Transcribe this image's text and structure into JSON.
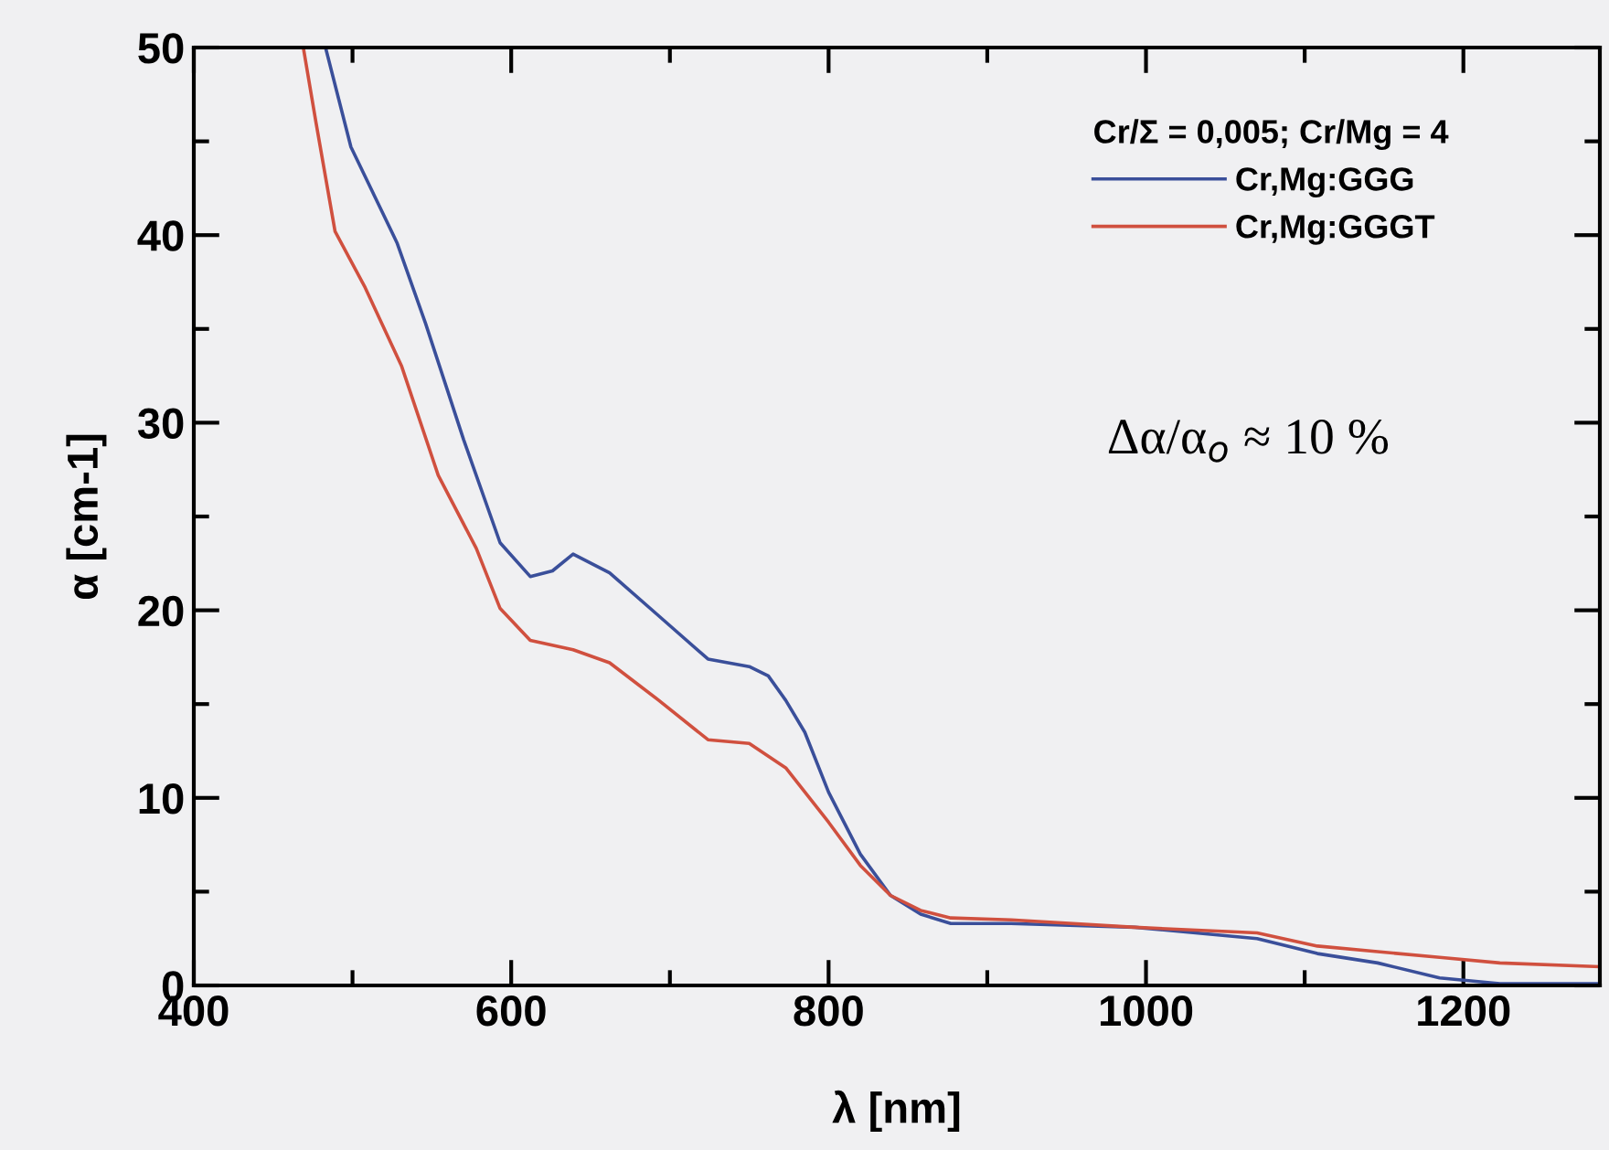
{
  "chart_data": {
    "type": "line",
    "xlabel": "λ [nm]",
    "ylabel": "α [cm-1]",
    "legend_title": "Cr/Σ = 0,005; Cr/Mg = 4",
    "legend": "top right",
    "grid": false,
    "marker": "none",
    "line_style": "solid",
    "xlim": [
      400,
      1286
    ],
    "ylim": [
      0,
      50
    ],
    "xticks": [
      400,
      {
        "value": 500,
        "label": null
      },
      600,
      {
        "value": 700,
        "label": null
      },
      800,
      {
        "value": 900,
        "label": null
      },
      1000,
      {
        "value": 1100,
        "label": null
      },
      1200
    ],
    "yticks": [
      0,
      {
        "value": 5,
        "label": null
      },
      10,
      {
        "value": 15,
        "label": null
      },
      20,
      {
        "value": 25,
        "label": null
      },
      30,
      {
        "value": 35,
        "label": null
      },
      40,
      {
        "value": 45,
        "label": null
      },
      50
    ],
    "annotations": [
      "Δα/α$_{o}$ ≈ 10 %"
    ],
    "series": [
      {
        "name": "Cr,Mg:GGG",
        "color": "#3a4f9a",
        "x": [
          483,
          499,
          528,
          546,
          570,
          593,
          612,
          626,
          639,
          662,
          693,
          724,
          750,
          762,
          773,
          785,
          800,
          820,
          839,
          858,
          877,
          915,
          993,
          1070,
          1108,
          1146,
          1185,
          1223,
          1285
        ],
        "values": [
          50,
          44.7,
          39.6,
          35.3,
          29.1,
          23.6,
          21.8,
          22.1,
          23.0,
          22.0,
          19.7,
          17.4,
          17.0,
          16.5,
          15.2,
          13.5,
          10.3,
          7.0,
          4.8,
          3.8,
          3.3,
          3.3,
          3.1,
          2.5,
          1.7,
          1.2,
          0.4,
          0.1,
          0.1
        ]
      },
      {
        "name": "Cr,Mg:GGGT",
        "color": "#d0503f",
        "x": [
          469,
          477,
          489,
          508,
          531,
          554,
          578,
          593,
          612,
          639,
          662,
          693,
          724,
          750,
          773,
          800,
          820,
          839,
          858,
          877,
          915,
          993,
          1070,
          1108,
          1146,
          1185,
          1223,
          1285
        ],
        "values": [
          50,
          46.0,
          40.2,
          37.2,
          33.0,
          27.2,
          23.3,
          20.1,
          18.4,
          17.9,
          17.2,
          15.2,
          13.1,
          12.9,
          11.6,
          8.7,
          6.4,
          4.8,
          4.0,
          3.6,
          3.5,
          3.1,
          2.8,
          2.1,
          1.8,
          1.5,
          1.2,
          1.0
        ]
      }
    ]
  }
}
